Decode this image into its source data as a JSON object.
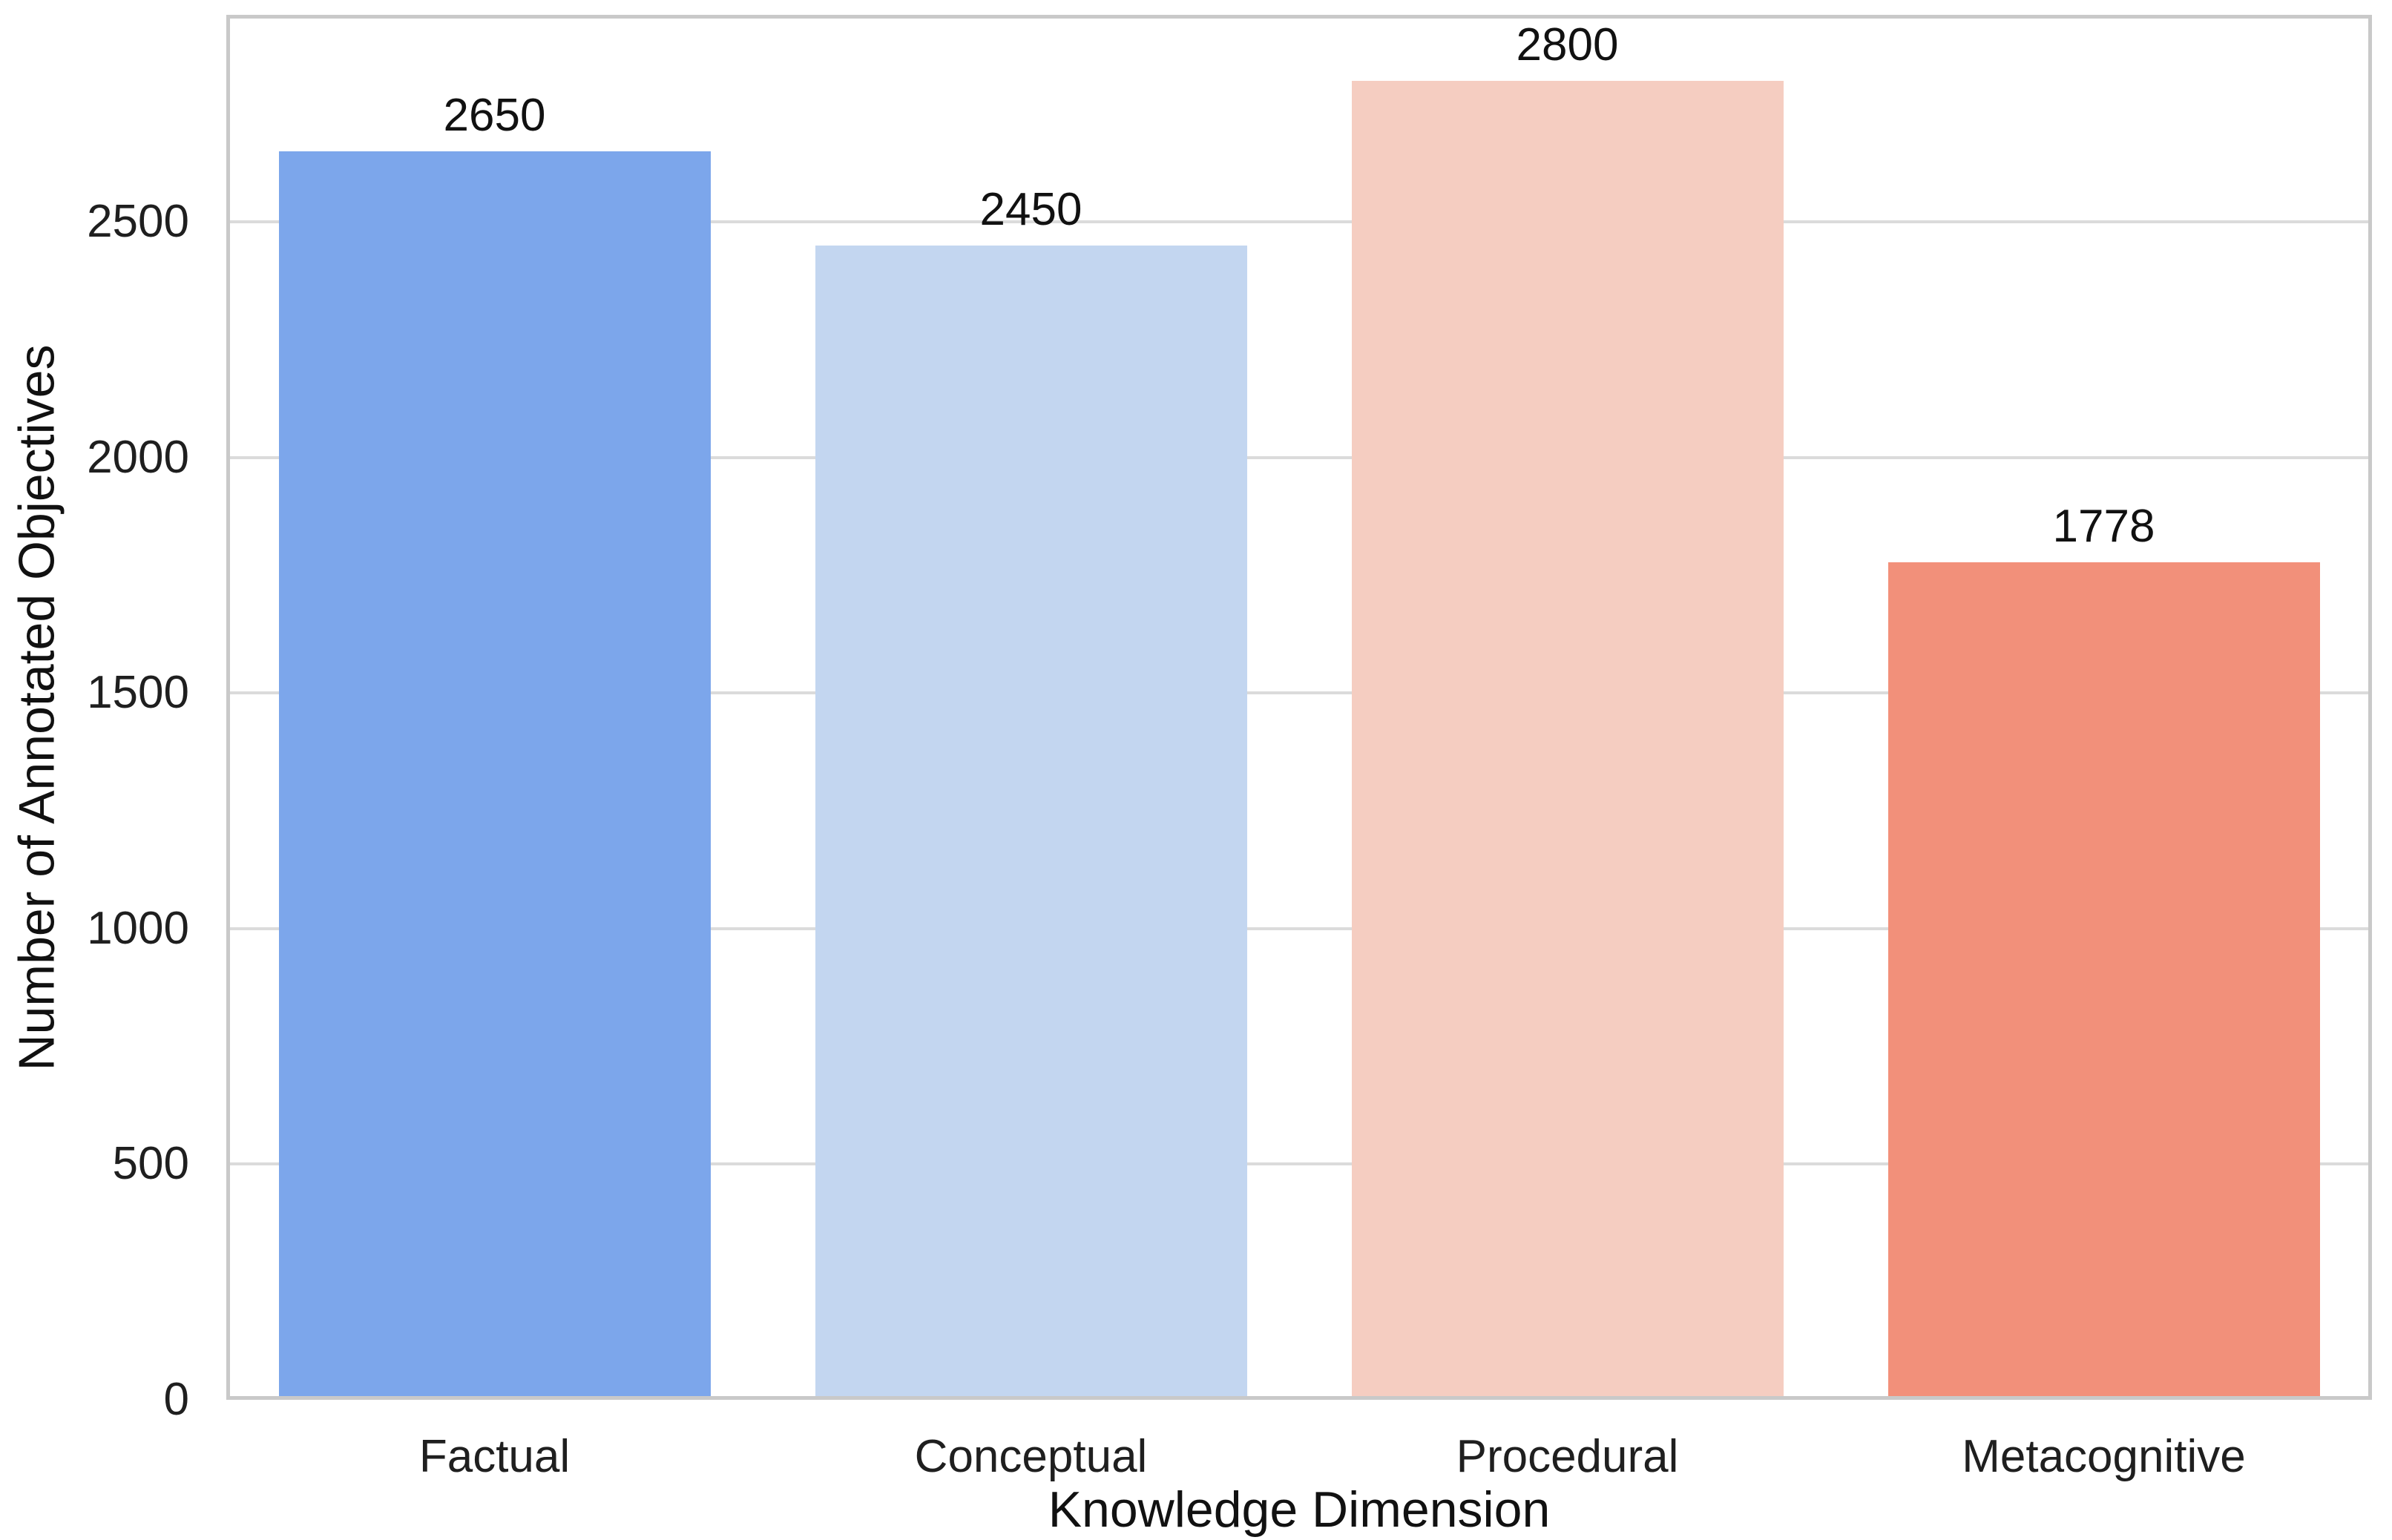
{
  "chart_data": {
    "type": "bar",
    "title": "",
    "xlabel": "Knowledge Dimension",
    "ylabel": "Number of Annotated Objectives",
    "categories": [
      "Factual",
      "Conceptual",
      "Procedural",
      "Metacognitive"
    ],
    "values": [
      2650,
      2450,
      2800,
      1778
    ],
    "yticks": [
      "0",
      "500",
      "1000",
      "1500",
      "2000",
      "2500"
    ],
    "ytick_values": [
      0,
      500,
      1000,
      1500,
      2000,
      2500
    ],
    "ylim": [
      0,
      2940
    ],
    "grid": "horizontal",
    "legend": "none",
    "bar_colors": [
      "#7CA6EB",
      "#C3D6F0",
      "#F5CDC1",
      "#F2907A"
    ],
    "grid_color": "#DBDBDB",
    "axis_color": "#C9C9C9",
    "text_color": "#1F1F1F",
    "background": "#FFFFFF"
  }
}
